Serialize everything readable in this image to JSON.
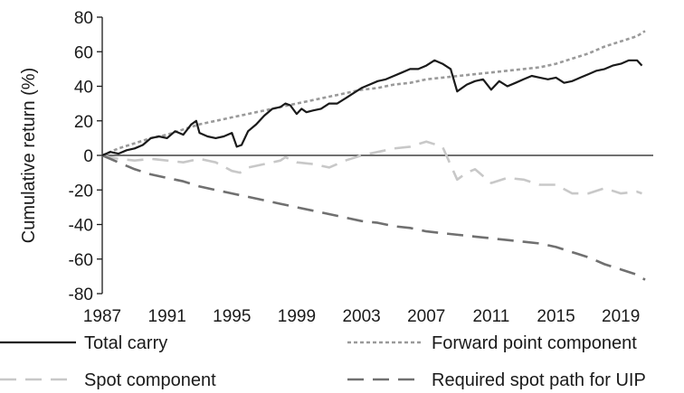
{
  "chart_data": {
    "type": "line",
    "title": "",
    "xlabel": "",
    "ylabel": "Cumulative return (%)",
    "xlim": [
      1987,
      2021
    ],
    "ylim": [
      -80,
      80
    ],
    "yticks": [
      80,
      60,
      40,
      20,
      0,
      -20,
      -40,
      -60,
      -80
    ],
    "xticks": [
      1987,
      1991,
      1995,
      1999,
      2003,
      2007,
      2011,
      2015,
      2019
    ],
    "grid": false,
    "legend_placement": "bottom",
    "series": [
      {
        "name": "Total carry",
        "color": "#1a1a1a",
        "dash": "solid",
        "points": [
          [
            1987,
            0
          ],
          [
            1987.5,
            2
          ],
          [
            1988,
            1
          ],
          [
            1988.5,
            3
          ],
          [
            1989,
            4
          ],
          [
            1989.5,
            6
          ],
          [
            1990,
            10
          ],
          [
            1990.5,
            11
          ],
          [
            1991,
            10
          ],
          [
            1991.5,
            14
          ],
          [
            1992,
            12
          ],
          [
            1992.5,
            18
          ],
          [
            1992.8,
            20
          ],
          [
            1993,
            13
          ],
          [
            1993.5,
            11
          ],
          [
            1994,
            10
          ],
          [
            1994.5,
            11
          ],
          [
            1995,
            13
          ],
          [
            1995.3,
            5
          ],
          [
            1995.6,
            6
          ],
          [
            1996,
            14
          ],
          [
            1996.5,
            18
          ],
          [
            1997,
            23
          ],
          [
            1997.5,
            27
          ],
          [
            1998,
            28
          ],
          [
            1998.3,
            30
          ],
          [
            1998.6,
            29
          ],
          [
            1999,
            24
          ],
          [
            1999.3,
            27
          ],
          [
            1999.6,
            25
          ],
          [
            2000,
            26
          ],
          [
            2000.5,
            27
          ],
          [
            2001,
            30
          ],
          [
            2001.5,
            30
          ],
          [
            2002,
            33
          ],
          [
            2002.5,
            36
          ],
          [
            2003,
            39
          ],
          [
            2003.5,
            41
          ],
          [
            2004,
            43
          ],
          [
            2004.5,
            44
          ],
          [
            2005,
            46
          ],
          [
            2005.5,
            48
          ],
          [
            2006,
            50
          ],
          [
            2006.5,
            50
          ],
          [
            2007,
            52
          ],
          [
            2007.5,
            55
          ],
          [
            2008,
            53
          ],
          [
            2008.5,
            50
          ],
          [
            2008.9,
            37
          ],
          [
            2009.5,
            41
          ],
          [
            2010,
            43
          ],
          [
            2010.5,
            44
          ],
          [
            2011,
            38
          ],
          [
            2011.5,
            43
          ],
          [
            2012,
            40
          ],
          [
            2012.5,
            42
          ],
          [
            2013,
            44
          ],
          [
            2013.5,
            46
          ],
          [
            2014,
            45
          ],
          [
            2014.5,
            44
          ],
          [
            2015,
            45
          ],
          [
            2015.5,
            42
          ],
          [
            2016,
            43
          ],
          [
            2016.5,
            45
          ],
          [
            2017,
            47
          ],
          [
            2017.5,
            49
          ],
          [
            2018,
            50
          ],
          [
            2018.5,
            52
          ],
          [
            2019,
            53
          ],
          [
            2019.5,
            55
          ],
          [
            2020,
            55
          ],
          [
            2020.3,
            52
          ]
        ]
      },
      {
        "name": "Forward point component",
        "color": "#9a9a9a",
        "dash": "short",
        "points": [
          [
            1987,
            0
          ],
          [
            1988,
            4
          ],
          [
            1989,
            7
          ],
          [
            1990,
            10
          ],
          [
            1991,
            12
          ],
          [
            1992,
            15
          ],
          [
            1993,
            18
          ],
          [
            1994,
            20
          ],
          [
            1995,
            22
          ],
          [
            1996,
            24
          ],
          [
            1997,
            26
          ],
          [
            1998,
            28
          ],
          [
            1999,
            30
          ],
          [
            2000,
            32
          ],
          [
            2001,
            34
          ],
          [
            2002,
            36
          ],
          [
            2003,
            38
          ],
          [
            2004,
            39
          ],
          [
            2005,
            41
          ],
          [
            2006,
            42
          ],
          [
            2007,
            44
          ],
          [
            2008,
            45
          ],
          [
            2009,
            46
          ],
          [
            2010,
            47
          ],
          [
            2011,
            48
          ],
          [
            2012,
            49
          ],
          [
            2013,
            50
          ],
          [
            2014,
            51
          ],
          [
            2015,
            53
          ],
          [
            2016,
            56
          ],
          [
            2017,
            59
          ],
          [
            2018,
            63
          ],
          [
            2019,
            66
          ],
          [
            2020,
            69
          ],
          [
            2020.5,
            72
          ]
        ]
      },
      {
        "name": "Spot component",
        "color": "#c8c8c8",
        "dash": "long",
        "points": [
          [
            1987,
            0
          ],
          [
            1988,
            -2
          ],
          [
            1989,
            -3
          ],
          [
            1990,
            -2
          ],
          [
            1991,
            -3
          ],
          [
            1992,
            -4
          ],
          [
            1993,
            -2
          ],
          [
            1994,
            -4
          ],
          [
            1995,
            -9
          ],
          [
            1995.5,
            -10
          ],
          [
            1996,
            -7
          ],
          [
            1997,
            -5
          ],
          [
            1998,
            -3
          ],
          [
            1998.3,
            -1
          ],
          [
            1999,
            -4
          ],
          [
            2000,
            -5
          ],
          [
            2001,
            -7
          ],
          [
            2002,
            -3
          ],
          [
            2003,
            0
          ],
          [
            2004,
            2
          ],
          [
            2005,
            4
          ],
          [
            2006,
            5
          ],
          [
            2007,
            8
          ],
          [
            2008,
            5
          ],
          [
            2008.9,
            -14
          ],
          [
            2009.5,
            -10
          ],
          [
            2010,
            -8
          ],
          [
            2011,
            -16
          ],
          [
            2012,
            -13
          ],
          [
            2013,
            -14
          ],
          [
            2014,
            -17
          ],
          [
            2015,
            -17
          ],
          [
            2016,
            -22
          ],
          [
            2017,
            -22
          ],
          [
            2018,
            -19
          ],
          [
            2019,
            -22
          ],
          [
            2020,
            -21
          ],
          [
            2020.3,
            -22
          ]
        ]
      },
      {
        "name": "Required spot path for UIP",
        "color": "#707070",
        "dash": "long",
        "points": [
          [
            1987,
            0
          ],
          [
            1988,
            -4
          ],
          [
            1989,
            -8
          ],
          [
            1990,
            -11
          ],
          [
            1991,
            -13
          ],
          [
            1992,
            -15
          ],
          [
            1993,
            -18
          ],
          [
            1994,
            -20
          ],
          [
            1995,
            -22
          ],
          [
            1996,
            -24
          ],
          [
            1997,
            -26
          ],
          [
            1998,
            -28
          ],
          [
            1999,
            -30
          ],
          [
            2000,
            -32
          ],
          [
            2001,
            -34
          ],
          [
            2002,
            -36
          ],
          [
            2003,
            -38
          ],
          [
            2004,
            -39
          ],
          [
            2005,
            -41
          ],
          [
            2006,
            -42
          ],
          [
            2007,
            -44
          ],
          [
            2008,
            -45
          ],
          [
            2009,
            -46
          ],
          [
            2010,
            -47
          ],
          [
            2011,
            -48
          ],
          [
            2012,
            -49
          ],
          [
            2013,
            -50
          ],
          [
            2014,
            -51
          ],
          [
            2015,
            -53
          ],
          [
            2016,
            -56
          ],
          [
            2017,
            -59
          ],
          [
            2018,
            -63
          ],
          [
            2019,
            -66
          ],
          [
            2020,
            -69
          ],
          [
            2020.5,
            -72
          ]
        ]
      }
    ]
  }
}
